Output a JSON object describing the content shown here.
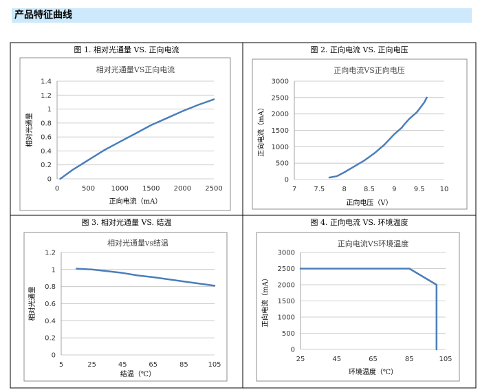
{
  "section_title": "产品特征曲线",
  "chart_data": [
    {
      "type": "line",
      "panel_title": "图 1. 相对光通量 VS. 正向电流",
      "title": "相对光通量VS正向电流",
      "xlabel": "正向电流（mA）",
      "ylabel": "相对光通量",
      "xlim": [
        0,
        2500
      ],
      "ylim": [
        0,
        1.4
      ],
      "x_ticks": [
        0,
        500,
        1000,
        1500,
        2000,
        2500
      ],
      "y_ticks": [
        0,
        0.2,
        0.4,
        0.6,
        0.8,
        1,
        1.2,
        1.4
      ],
      "x_tick_labels": [
        "0",
        "500",
        "1000",
        "1500",
        "2000",
        "2500"
      ],
      "y_tick_labels": [
        "0",
        "0.2",
        "0.4",
        "0.6",
        "0.8",
        "1",
        "1.2",
        "1.4"
      ],
      "grid": "horizontal",
      "color": "#4a7ebb",
      "x": [
        50,
        250,
        500,
        750,
        1000,
        1250,
        1500,
        1750,
        2000,
        2250,
        2500
      ],
      "values": [
        0,
        0.13,
        0.27,
        0.41,
        0.53,
        0.65,
        0.77,
        0.87,
        0.97,
        1.06,
        1.14
      ]
    },
    {
      "type": "line",
      "panel_title": "图 2. 正向电流 VS. 正向电压",
      "title": "正向电流VS正向电压",
      "xlabel": "正向电压（V）",
      "ylabel": "正向电流（mA）",
      "xlim": [
        7,
        10
      ],
      "ylim": [
        0,
        3000
      ],
      "x_ticks": [
        7,
        7.5,
        8,
        8.5,
        9,
        9.5,
        10
      ],
      "y_ticks": [
        0,
        500,
        1000,
        1500,
        2000,
        2500,
        3000
      ],
      "x_tick_labels": [
        "7",
        "7.5",
        "8",
        "8.5",
        "9",
        "9.5",
        "10"
      ],
      "y_tick_labels": [
        "0",
        "500",
        "1000",
        "1500",
        "2000",
        "2500",
        "3000"
      ],
      "grid": "horizontal",
      "color": "#4a7ebb",
      "x": [
        7.7,
        7.85,
        8.0,
        8.2,
        8.4,
        8.6,
        8.8,
        9.0,
        9.15,
        9.2,
        9.3,
        9.45,
        9.5,
        9.6,
        9.65
      ],
      "values": [
        60,
        100,
        220,
        400,
        580,
        800,
        1060,
        1380,
        1580,
        1680,
        1850,
        2050,
        2150,
        2350,
        2500
      ]
    },
    {
      "type": "line",
      "panel_title": "图 3. 相对光通量 VS. 结温",
      "title": "相对光通量vs结温",
      "xlabel": "结温（℃）",
      "ylabel": "相对光通量",
      "xlim": [
        5,
        105
      ],
      "ylim": [
        0,
        1.2
      ],
      "x_ticks": [
        5,
        25,
        45,
        65,
        85,
        105
      ],
      "y_ticks": [
        0,
        0.2,
        0.4,
        0.6,
        0.8,
        1,
        1.2
      ],
      "x_tick_labels": [
        "5",
        "25",
        "45",
        "65",
        "85",
        "105"
      ],
      "y_tick_labels": [
        "0",
        "0.2",
        "0.4",
        "0.6",
        "0.8",
        "1",
        "1.2"
      ],
      "grid": "horizontal",
      "color": "#4a7ebb",
      "x": [
        15,
        25,
        45,
        55,
        65,
        85,
        105
      ],
      "values": [
        1.01,
        1.0,
        0.96,
        0.93,
        0.91,
        0.86,
        0.81
      ]
    },
    {
      "type": "line",
      "panel_title": "图 4. 正向电流 VS. 环境温度",
      "title": "正向电流VS环境温度",
      "xlabel": "环境温度（℃）",
      "ylabel": "正向电流（mA）",
      "xlim": [
        25,
        105
      ],
      "ylim": [
        0,
        3000
      ],
      "x_ticks": [
        25,
        45,
        65,
        85,
        105
      ],
      "y_ticks": [
        0,
        500,
        1000,
        1500,
        2000,
        2500,
        3000
      ],
      "x_tick_labels": [
        "25",
        "45",
        "65",
        "85",
        "105"
      ],
      "y_tick_labels": [
        "0",
        "500",
        "1000",
        "1500",
        "2000",
        "2500",
        "3000"
      ],
      "grid": "horizontal",
      "color": "#4a7ebb",
      "x": [
        25,
        85,
        100,
        100
      ],
      "values": [
        2500,
        2500,
        2000,
        0
      ]
    }
  ]
}
